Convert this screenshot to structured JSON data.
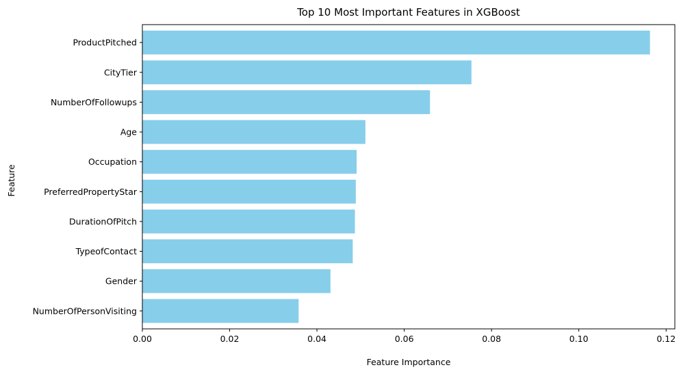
{
  "chart_data": {
    "type": "bar",
    "orientation": "horizontal",
    "title": "Top 10 Most Important Features in XGBoost",
    "xlabel": "Feature Importance",
    "ylabel": "Feature",
    "categories": [
      "ProductPitched",
      "CityTier",
      "NumberOfFollowups",
      "Age",
      "Occupation",
      "PreferredPropertyStar",
      "DurationOfPitch",
      "TypeofContact",
      "Gender",
      "NumberOfPersonVisiting"
    ],
    "values": [
      0.1163,
      0.0754,
      0.0659,
      0.0511,
      0.0491,
      0.0489,
      0.0487,
      0.0482,
      0.0431,
      0.0358
    ],
    "xlim": [
      0,
      0.122
    ],
    "xticks": [
      0.0,
      0.02,
      0.04,
      0.06,
      0.08,
      0.1,
      0.12
    ],
    "xtick_labels": [
      "0.00",
      "0.02",
      "0.04",
      "0.06",
      "0.08",
      "0.10",
      "0.12"
    ],
    "bar_color": "#87ceeb",
    "grid": false,
    "legend": "none"
  }
}
